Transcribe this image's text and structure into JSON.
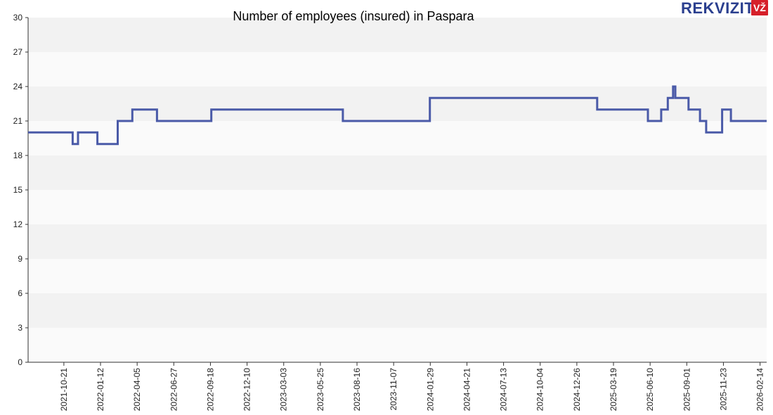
{
  "colors": {
    "line": "#4a5aa8",
    "band": "#f2f2f2",
    "band_alt": "#fafafa",
    "axis": "#333333",
    "logo_blue": "#2b3f8f",
    "logo_red": "#d6202a"
  },
  "logo": {
    "text": "REKVIZITAI",
    "badge": "VŽ"
  },
  "chart_data": {
    "type": "line",
    "title": "Number of employees (insured) in Paspara",
    "xlabel": "",
    "ylabel": "",
    "ylim": [
      0,
      30
    ],
    "yticks": [
      "0",
      "3",
      "6",
      "9",
      "12",
      "15",
      "18",
      "21",
      "24",
      "27",
      "30"
    ],
    "xlim": [
      "2021-08-01",
      "2026-03-01"
    ],
    "xticks": [
      "2021-10-21",
      "2022-01-12",
      "2022-04-05",
      "2022-06-27",
      "2022-09-18",
      "2022-12-10",
      "2023-03-03",
      "2023-05-25",
      "2023-08-16",
      "2023-11-07",
      "2024-01-29",
      "2024-04-21",
      "2024-07-13",
      "2024-10-04",
      "2024-12-26",
      "2025-03-19",
      "2025-06-10",
      "2025-09-01",
      "2025-11-23",
      "2026-02-14"
    ],
    "grid": true,
    "series": [
      {
        "step": true,
        "points": [
          [
            "2021-08-01",
            20
          ],
          [
            "2021-11-10",
            19
          ],
          [
            "2021-11-22",
            20
          ],
          [
            "2022-01-05",
            19
          ],
          [
            "2022-02-20",
            21
          ],
          [
            "2022-03-25",
            22
          ],
          [
            "2022-05-20",
            21
          ],
          [
            "2022-09-20",
            22
          ],
          [
            "2023-07-15",
            21
          ],
          [
            "2024-01-28",
            23
          ],
          [
            "2025-02-10",
            22
          ],
          [
            "2025-06-05",
            21
          ],
          [
            "2025-07-05",
            22
          ],
          [
            "2025-07-20",
            23
          ],
          [
            "2025-08-01",
            24
          ],
          [
            "2025-08-06",
            23
          ],
          [
            "2025-09-05",
            22
          ],
          [
            "2025-10-01",
            21
          ],
          [
            "2025-10-15",
            20
          ],
          [
            "2025-11-20",
            22
          ],
          [
            "2025-12-10",
            21
          ],
          [
            "2026-03-01",
            21
          ]
        ]
      }
    ]
  }
}
